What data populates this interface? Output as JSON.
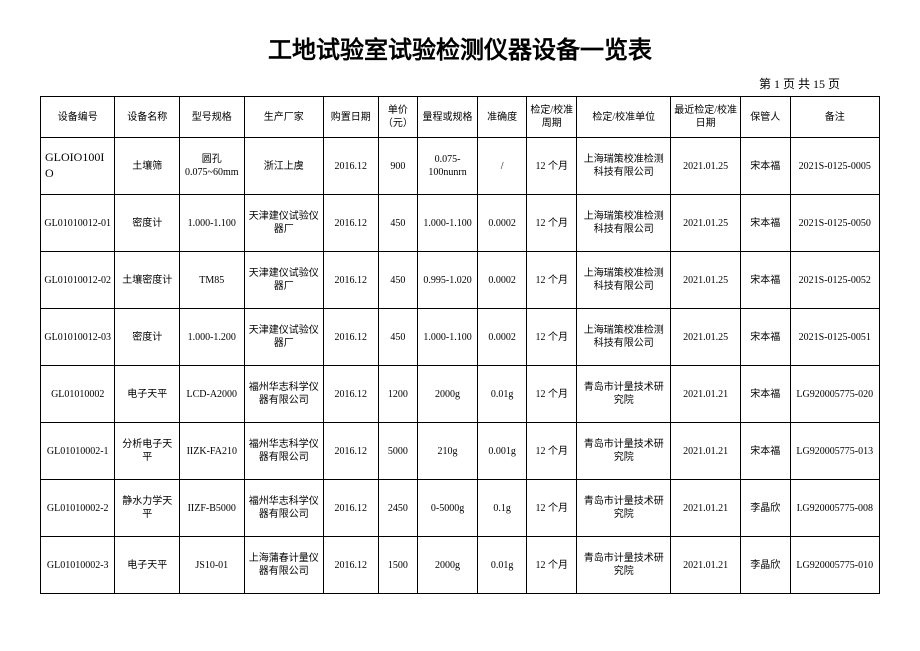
{
  "title": "工地试验室试验检测仪器设备一览表",
  "pager": "第 1 页 共 15 页",
  "columns": [
    "设备编号",
    "设备名称",
    "型号规格",
    "生产厂家",
    "购置日期",
    "单价（元）",
    "量程或规格",
    "准确度",
    "检定/校准周期",
    "检定/校准单位",
    "最近检定/校准日期",
    "保管人",
    "备注"
  ],
  "rows": [
    [
      "GLOIO100IO",
      "土壤筛",
      "圆孔0.075~60mm",
      "浙江上虞",
      "2016.12",
      "900",
      "0.075-100nunrn",
      "/",
      "12 个月",
      "上海瑞策校准检测科技有限公司",
      "2021.01.25",
      "宋本福",
      "2021S-0125-0005"
    ],
    [
      "GL01010012-01",
      "密度计",
      "1.000-1.100",
      "天津建仪试验仪器厂",
      "2016.12",
      "450",
      "1.000-1.100",
      "0.0002",
      "12 个月",
      "上海瑞策校准检测科技有限公司",
      "2021.01.25",
      "宋本福",
      "2021S-0125-0050"
    ],
    [
      "GL01010012-02",
      "土壤密度计",
      "TM85",
      "天津建仪试验仪器厂",
      "2016.12",
      "450",
      "0.995-1.020",
      "0.0002",
      "12 个月",
      "上海瑞策校准检测科技有限公司",
      "2021.01.25",
      "宋本福",
      "2021S-0125-0052"
    ],
    [
      "GL01010012-03",
      "密度计",
      "1.000-1.200",
      "天津建仪试验仪器厂",
      "2016.12",
      "450",
      "1.000-1.100",
      "0.0002",
      "12 个月",
      "上海瑞策校准检测科技有限公司",
      "2021.01.25",
      "宋本福",
      "2021S-0125-0051"
    ],
    [
      "GL01010002",
      "电子天平",
      "LCD-A2000",
      "福州华志科学仪器有限公司",
      "2016.12",
      "1200",
      "2000g",
      "0.01g",
      "12 个月",
      "青岛市计量技术研究院",
      "2021.01.21",
      "宋本福",
      "LG920005775-020"
    ],
    [
      "GL01010002-1",
      "分析电子天平",
      "IIZK-FA210",
      "福州华志科学仪器有限公司",
      "2016.12",
      "5000",
      "210g",
      "0.001g",
      "12 个月",
      "青岛市计量技术研究院",
      "2021.01.21",
      "宋本福",
      "LG920005775-013"
    ],
    [
      "GL01010002-2",
      "静水力学天平",
      "IIZF-B5000",
      "福州华志科学仪器有限公司",
      "2016.12",
      "2450",
      "0-5000g",
      "0.1g",
      "12 个月",
      "青岛市计量技术研究院",
      "2021.01.21",
      "李晶欣",
      "I.G920005775-008"
    ],
    [
      "GL01010002-3",
      "电子天平",
      "JS10-01",
      "上海蒲春计量仪器有限公司",
      "2016.12",
      "1500",
      "2000g",
      "0.01g",
      "12 个月",
      "青岛市计量技术研究院",
      "2021.01.21",
      "李晶欣",
      "LG920005775-010"
    ]
  ]
}
